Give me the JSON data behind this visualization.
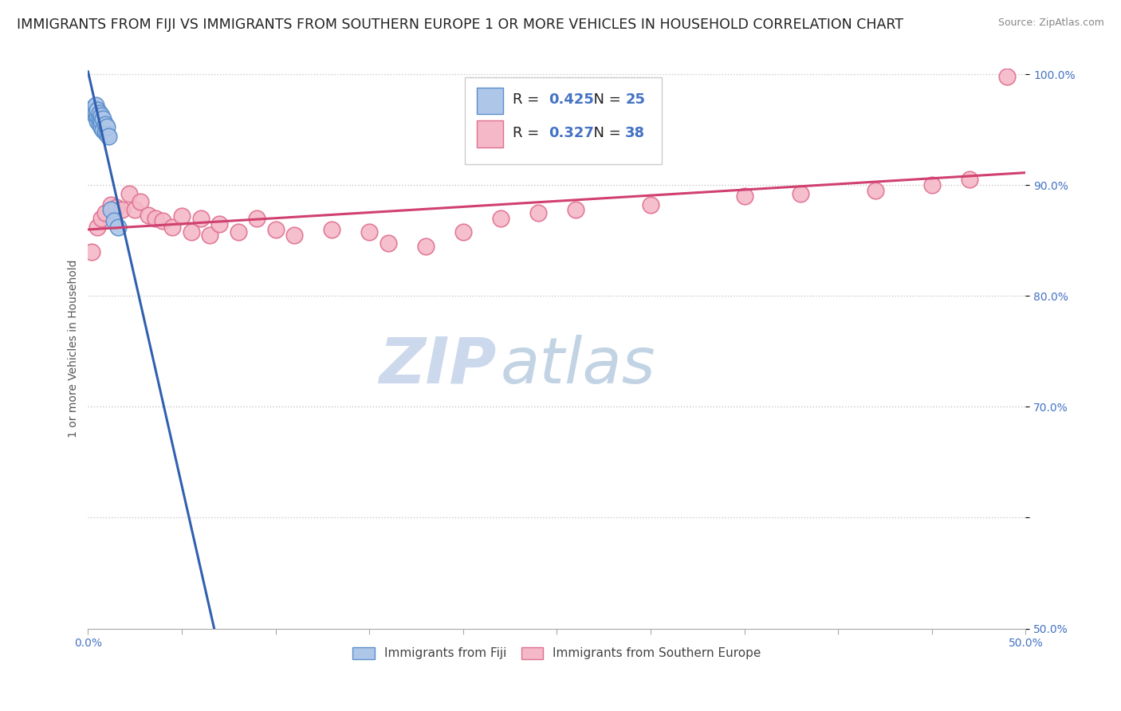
{
  "title": "IMMIGRANTS FROM FIJI VS IMMIGRANTS FROM SOUTHERN EUROPE 1 OR MORE VEHICLES IN HOUSEHOLD CORRELATION CHART",
  "source": "Source: ZipAtlas.com",
  "ylabel": "1 or more Vehicles in Household",
  "xlim": [
    0.0,
    0.5
  ],
  "ylim": [
    0.5,
    1.005
  ],
  "xticks": [
    0.0,
    0.05,
    0.1,
    0.15,
    0.2,
    0.25,
    0.3,
    0.35,
    0.4,
    0.45,
    0.5
  ],
  "yticks": [
    0.5,
    0.6,
    0.7,
    0.8,
    0.9,
    1.0
  ],
  "fiji_color": "#aec6e8",
  "fiji_edge_color": "#5b8fcc",
  "se_color": "#f4b8c8",
  "se_edge_color": "#e07090",
  "fiji_R": 0.425,
  "fiji_N": 25,
  "se_R": 0.327,
  "se_N": 38,
  "fiji_line_color": "#3060b0",
  "se_line_color": "#d04070",
  "watermark_zip": "ZIP",
  "watermark_atlas": "atlas",
  "watermark_color": "#ccd9ec",
  "background_color": "#ffffff",
  "grid_color": "#c8c8c8",
  "title_fontsize": 12.5,
  "axis_tick_fontsize": 10,
  "legend_fontsize": 13,
  "fiji_x": [
    0.002,
    0.003,
    0.003,
    0.004,
    0.004,
    0.004,
    0.005,
    0.005,
    0.005,
    0.006,
    0.006,
    0.006,
    0.007,
    0.007,
    0.007,
    0.008,
    0.008,
    0.009,
    0.009,
    0.01,
    0.01,
    0.011,
    0.012,
    0.014,
    0.016
  ],
  "fiji_y": [
    0.968,
    0.965,
    0.97,
    0.962,
    0.966,
    0.972,
    0.958,
    0.963,
    0.968,
    0.955,
    0.96,
    0.965,
    0.952,
    0.958,
    0.963,
    0.95,
    0.96,
    0.948,
    0.955,
    0.946,
    0.953,
    0.944,
    0.878,
    0.868,
    0.862
  ],
  "se_x": [
    0.002,
    0.005,
    0.007,
    0.009,
    0.012,
    0.015,
    0.018,
    0.022,
    0.025,
    0.028,
    0.032,
    0.036,
    0.04,
    0.045,
    0.05,
    0.055,
    0.06,
    0.065,
    0.07,
    0.08,
    0.09,
    0.1,
    0.11,
    0.13,
    0.15,
    0.16,
    0.18,
    0.2,
    0.22,
    0.24,
    0.26,
    0.3,
    0.35,
    0.38,
    0.42,
    0.45,
    0.47,
    0.49
  ],
  "se_y": [
    0.84,
    0.862,
    0.87,
    0.875,
    0.882,
    0.88,
    0.878,
    0.892,
    0.878,
    0.885,
    0.873,
    0.87,
    0.868,
    0.862,
    0.872,
    0.858,
    0.87,
    0.855,
    0.865,
    0.858,
    0.87,
    0.86,
    0.855,
    0.86,
    0.858,
    0.848,
    0.845,
    0.858,
    0.87,
    0.875,
    0.878,
    0.882,
    0.89,
    0.892,
    0.895,
    0.9,
    0.905,
    0.998
  ]
}
